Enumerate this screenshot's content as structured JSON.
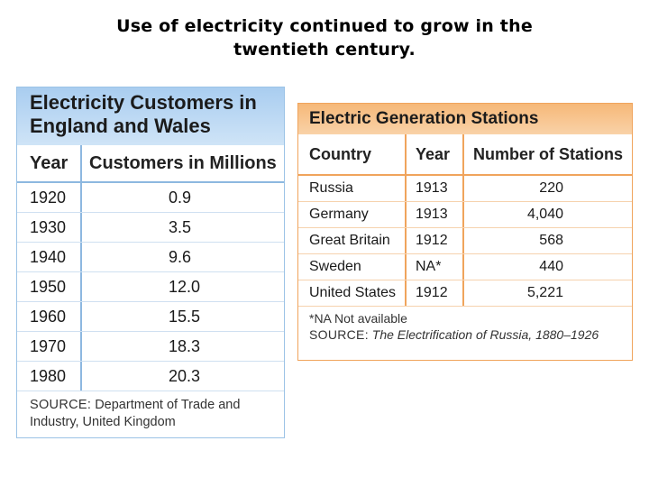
{
  "slide": {
    "title_line1": "Use of electricity continued to grow in the",
    "title_line2": "twentieth century."
  },
  "customers_table": {
    "title": "Electricity Customers in England and Wales",
    "col_year": "Year",
    "col_customers": "Customers in Millions",
    "rows": [
      {
        "year": "1920",
        "customers": "0.9"
      },
      {
        "year": "1930",
        "customers": "3.5"
      },
      {
        "year": "1940",
        "customers": "9.6"
      },
      {
        "year": "1950",
        "customers": "12.0"
      },
      {
        "year": "1960",
        "customers": "15.5"
      },
      {
        "year": "1970",
        "customers": "18.3"
      },
      {
        "year": "1980",
        "customers": "20.3"
      }
    ],
    "source_label": "SOURCE:",
    "source_text": "Department of Trade and Industry, United Kingdom"
  },
  "stations_table": {
    "title": "Electric Generation Stations",
    "col_country": "Country",
    "col_year": "Year",
    "col_stations": "Number of Stations",
    "rows": [
      {
        "country": "Russia",
        "year": "1913",
        "stations": "220"
      },
      {
        "country": "Germany",
        "year": "1913",
        "stations": "4,040"
      },
      {
        "country": "Great Britain",
        "year": "1912",
        "stations": "568"
      },
      {
        "country": "Sweden",
        "year": "NA*",
        "stations": "440"
      },
      {
        "country": "United States",
        "year": "1912",
        "stations": "5,221"
      }
    ],
    "footnote": "*NA Not available",
    "source_label": "SOURCE:",
    "source_text": "The Electrification of Russia, 1880–1926"
  }
}
